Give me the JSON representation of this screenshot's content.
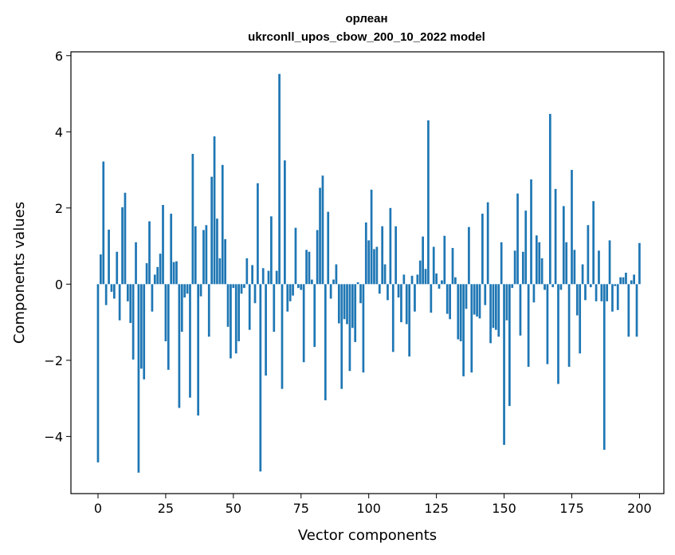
{
  "chart_data": {
    "type": "bar",
    "title_lines": [
      "орлеан",
      "ukrconll_upos_cbow_200_10_2022 model"
    ],
    "xlabel": "Vector components",
    "ylabel": "Components values",
    "xlim": [
      -10,
      209
    ],
    "ylim": [
      -5.5,
      6.1
    ],
    "xticks": [
      0,
      25,
      50,
      75,
      100,
      125,
      150,
      175,
      200
    ],
    "xtick_labels": [
      "0",
      "25",
      "50",
      "75",
      "100",
      "125",
      "150",
      "175",
      "200"
    ],
    "yticks": [
      -4,
      -2,
      0,
      2,
      4,
      6
    ],
    "ytick_labels": [
      "−4",
      "−2",
      "0",
      "2",
      "4",
      "6"
    ],
    "grid": false,
    "bar_color": "#1f77b4",
    "values": [
      -4.68,
      0.78,
      3.22,
      -0.55,
      1.43,
      -0.2,
      -0.38,
      0.85,
      -0.95,
      2.02,
      2.4,
      -0.45,
      -1.02,
      -1.98,
      1.1,
      -4.95,
      -2.22,
      -2.5,
      0.55,
      1.65,
      -0.72,
      0.25,
      0.45,
      0.8,
      2.08,
      -1.5,
      -2.25,
      1.85,
      0.58,
      0.6,
      -3.25,
      -1.25,
      -0.35,
      -0.25,
      -2.98,
      3.42,
      1.52,
      -3.45,
      -0.32,
      1.42,
      1.55,
      -1.38,
      2.82,
      3.88,
      1.72,
      0.68,
      3.13,
      1.18,
      -1.12,
      -1.95,
      -0.1,
      -1.82,
      -1.5,
      -0.25,
      -0.1,
      0.68,
      -1.2,
      0.5,
      -0.5,
      2.65,
      -4.92,
      0.42,
      -2.4,
      0.35,
      1.78,
      -1.25,
      0.35,
      5.52,
      -2.75,
      3.25,
      -0.72,
      -0.45,
      -0.3,
      1.48,
      -0.1,
      -0.15,
      -2.05,
      0.9,
      0.85,
      0.12,
      -1.65,
      1.42,
      2.53,
      2.85,
      -3.05,
      1.9,
      -0.38,
      0.12,
      0.52,
      -1.03,
      -2.75,
      -0.92,
      -1.05,
      -2.28,
      -1.15,
      -1.52,
      0.05,
      -0.5,
      -2.32,
      1.62,
      1.15,
      2.48,
      0.92,
      0.98,
      -0.25,
      1.52,
      0.52,
      -0.42,
      2.0,
      -1.78,
      1.52,
      -0.35,
      -1.0,
      0.25,
      -1.05,
      -1.9,
      0.22,
      -0.72,
      0.25,
      0.62,
      1.25,
      0.4,
      4.3,
      -0.75,
      0.98,
      0.28,
      -0.12,
      0.1,
      1.27,
      -0.78,
      -0.92,
      0.95,
      0.18,
      -1.45,
      -1.5,
      -2.42,
      -0.65,
      1.5,
      -2.32,
      -0.8,
      -0.85,
      -0.9,
      1.85,
      -0.55,
      2.15,
      -1.55,
      -1.15,
      -1.2,
      -1.38,
      1.1,
      -4.22,
      -0.95,
      -3.2,
      -0.1,
      0.88,
      2.38,
      -1.35,
      0.85,
      1.93,
      -2.17,
      2.75,
      -0.48,
      1.28,
      1.1,
      0.68,
      -0.15,
      -2.1,
      4.47,
      -0.08,
      2.5,
      -2.62,
      -0.15,
      2.05,
      1.1,
      -2.17,
      3.0,
      0.9,
      -0.82,
      -1.82,
      0.52,
      -0.42,
      1.55,
      -0.08,
      2.18,
      -0.45,
      0.88,
      -0.45,
      -4.35,
      -0.45,
      1.15,
      -0.72,
      -0.05,
      -0.68,
      0.18,
      0.18,
      0.3,
      -1.38,
      0.1,
      0.25,
      -1.38,
      1.08
    ]
  }
}
